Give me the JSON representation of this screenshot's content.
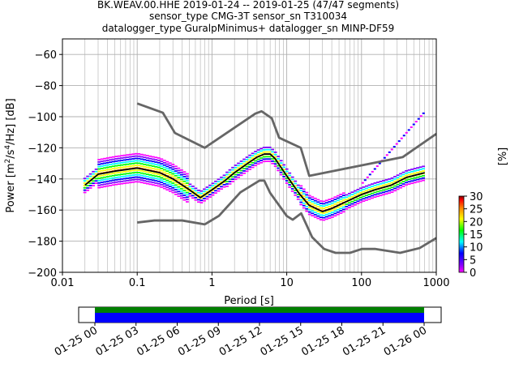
{
  "chart_data": {
    "type": "heatmap",
    "title_lines": [
      "BK.WEAV.00.HHE   2019-01-24 -- 2019-01-25  (47/47 segments)",
      "sensor_type CMG-3T sensor_sn T310034",
      "datalogger_type GuralpMinimus+ datalogger_sn MINP-DF59"
    ],
    "xlabel": "Period [s]",
    "ylabel": "Power [m²/s⁴/Hz] [dB]",
    "xscale": "log",
    "xlim": [
      0.01,
      1000
    ],
    "ylim": [
      -200,
      -50
    ],
    "x_ticks": [
      0.01,
      0.1,
      1,
      10,
      100,
      1000
    ],
    "x_tick_labels": [
      "0.01",
      "0.1",
      "1",
      "10",
      "100",
      "1000"
    ],
    "y_ticks": [
      -200,
      -180,
      -160,
      -140,
      -120,
      -100,
      -80,
      -60
    ],
    "y_tick_labels": [
      "−200",
      "−180",
      "−160",
      "−140",
      "−120",
      "−100",
      "−80",
      "−60"
    ],
    "grid": true,
    "colorbar": {
      "label": "[%]",
      "min": 0,
      "max": 30,
      "ticks": [
        0,
        5,
        10,
        15,
        20,
        25,
        30
      ],
      "tick_labels": [
        "0",
        "5",
        "10",
        "15",
        "20",
        "25",
        "30"
      ]
    },
    "series": [
      {
        "role": "new_high_noise_model",
        "color": "#666666",
        "x": [
          0.1,
          0.22,
          0.32,
          0.8,
          3.8,
          4.6,
          6.3,
          7.9,
          15.4,
          20,
          354.8,
          1000
        ],
        "y": [
          -91.5,
          -97.4,
          -110.5,
          -120,
          -98,
          -96.5,
          -101,
          -113.5,
          -120,
          -138,
          -126,
          -111
        ]
      },
      {
        "role": "new_low_noise_model",
        "color": "#666666",
        "x": [
          0.1,
          0.17,
          0.4,
          0.8,
          1.24,
          2.4,
          4.3,
          5.0,
          6.0,
          10.0,
          12.0,
          15.6,
          21.9,
          31.6,
          45,
          70,
          101,
          154,
          328,
          600,
          1000
        ],
        "y": [
          -168,
          -166.7,
          -166.7,
          -169.2,
          -163.7,
          -148.6,
          -141.1,
          -141.1,
          -149,
          -163.8,
          -166.2,
          -162.1,
          -177.5,
          -185,
          -187.5,
          -187.5,
          -185,
          -185,
          -187.5,
          -184.4,
          -178
        ]
      },
      {
        "role": "mean_psd",
        "color": "#000000",
        "x": [
          0.02,
          0.03,
          0.05,
          0.1,
          0.2,
          0.3,
          0.5,
          0.7,
          1,
          1.5,
          2,
          3,
          4,
          5,
          6,
          7,
          10,
          15,
          20,
          30,
          40,
          60,
          100,
          150,
          250,
          400,
          700
        ],
        "y": [
          -144,
          -137,
          -135,
          -133,
          -136,
          -140,
          -147,
          -152,
          -147,
          -141,
          -136,
          -130,
          -126,
          -124,
          -124,
          -127,
          -138,
          -150,
          -157,
          -161,
          -159,
          -155,
          -150,
          -147,
          -144,
          -139,
          -136
        ]
      }
    ],
    "time_coverage": {
      "tick_labels": [
        "01-25 00",
        "01-25 03",
        "01-25 06",
        "01-25 09",
        "01-25 12",
        "01-25 15",
        "01-25 18",
        "01-25 21",
        "01-26 00"
      ],
      "bars": [
        {
          "role": "data_availability",
          "color": "#008000",
          "start": "01-25 00",
          "end": "01-26 00"
        },
        {
          "role": "psd_segments",
          "color": "#0000ff",
          "start": "01-25 00",
          "end": "01-26 00"
        }
      ]
    }
  }
}
